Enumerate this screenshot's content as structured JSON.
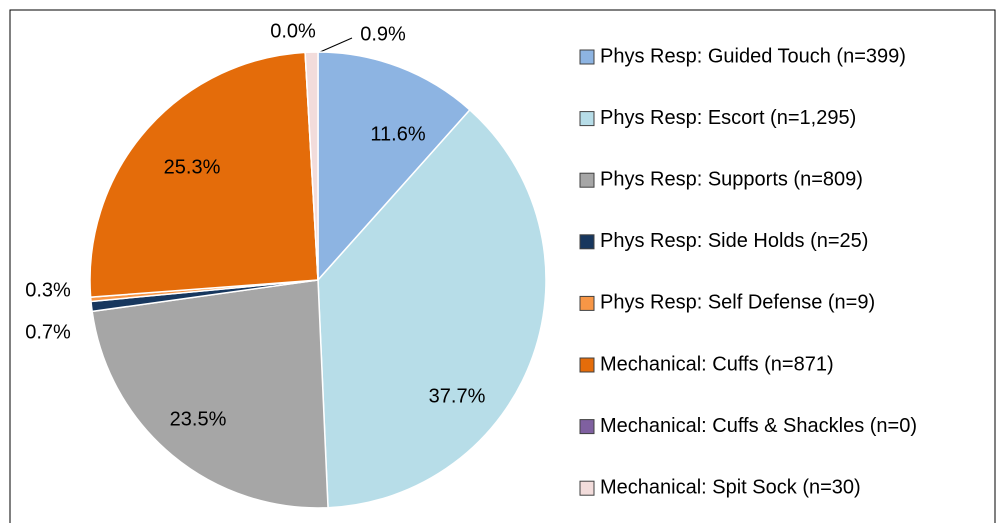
{
  "chart_data": {
    "type": "pie",
    "categories": [
      "Phys Resp: Guided Touch (n=399)",
      "Phys Resp: Escort (n=1,295)",
      "Phys Resp: Supports (n=809)",
      "Phys Resp: Side Holds (n=25)",
      "Phys Resp: Self Defense (n=9)",
      "Mechanical: Cuffs (n=871)",
      "Mechanical: Cuffs & Shackles (n=0)",
      "Mechanical: Spit Sock (n=30)"
    ],
    "values": [
      11.6,
      37.7,
      23.5,
      0.7,
      0.3,
      25.3,
      0.0,
      0.9
    ],
    "value_labels": [
      "11.6%",
      "37.7%",
      "23.5%",
      "0.7%",
      "0.3%",
      "25.3%",
      "0.0%",
      "0.9%"
    ],
    "colors": [
      "#8db4e2",
      "#b7dde8",
      "#a6a6a6",
      "#17375e",
      "#f79646",
      "#e46c0a",
      "#7f60a0",
      "#f2dcdb"
    ],
    "legend": "right"
  }
}
